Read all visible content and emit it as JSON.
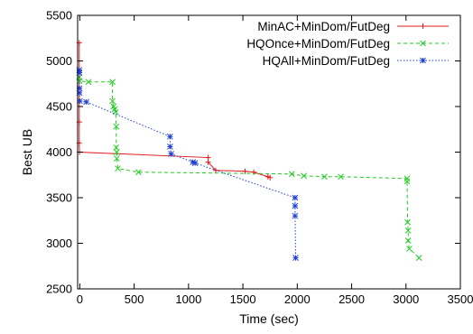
{
  "chart_data": {
    "type": "line",
    "title": "",
    "xlabel": "Time (sec)",
    "ylabel": "Best UB",
    "xlim": [
      -20,
      3500
    ],
    "ylim": [
      2500,
      5500
    ],
    "xticks": [
      0,
      500,
      1000,
      1500,
      2000,
      2500,
      3000,
      3500
    ],
    "yticks": [
      2500,
      3000,
      3500,
      4000,
      4500,
      5000,
      5500
    ],
    "grid": false,
    "legend_position": "top-right",
    "series": [
      {
        "name": "MinAC+MinDom/FutDeg",
        "color": "#e41a1c",
        "line_style": "solid",
        "marker": "plus",
        "points": [
          [
            -5,
            5200
          ],
          [
            -5,
            4700
          ],
          [
            -5,
            4330
          ],
          [
            -5,
            4100
          ],
          [
            -3,
            4000
          ],
          [
            1180,
            3940
          ],
          [
            1180,
            3890
          ],
          [
            1250,
            3800
          ],
          [
            1520,
            3790
          ],
          [
            1600,
            3780
          ],
          [
            1730,
            3730
          ],
          [
            1750,
            3720
          ]
        ]
      },
      {
        "name": "HQOnce+MinDom/FutDeg",
        "color": "#22cc22",
        "line_style": "dashed",
        "marker": "cross",
        "points": [
          [
            -5,
            4820
          ],
          [
            -3,
            4780
          ],
          [
            80,
            4770
          ],
          [
            300,
            4770
          ],
          [
            300,
            4560
          ],
          [
            310,
            4500
          ],
          [
            320,
            4470
          ],
          [
            330,
            4440
          ],
          [
            335,
            4280
          ],
          [
            335,
            4050
          ],
          [
            340,
            4000
          ],
          [
            340,
            3930
          ],
          [
            350,
            3820
          ],
          [
            540,
            3780
          ],
          [
            1950,
            3760
          ],
          [
            2060,
            3740
          ],
          [
            2250,
            3730
          ],
          [
            2400,
            3730
          ],
          [
            3010,
            3710
          ],
          [
            3010,
            3680
          ],
          [
            3015,
            3230
          ],
          [
            3020,
            3140
          ],
          [
            3020,
            3030
          ],
          [
            3030,
            2940
          ],
          [
            3120,
            2840
          ]
        ]
      },
      {
        "name": "HQAll+MinDom/FutDeg",
        "color": "#1f3fd9",
        "line_style": "dotted",
        "marker": "star",
        "points": [
          [
            -5,
            4900
          ],
          [
            -3,
            4870
          ],
          [
            -3,
            4700
          ],
          [
            -3,
            4650
          ],
          [
            0,
            4560
          ],
          [
            60,
            4550
          ],
          [
            830,
            4170
          ],
          [
            830,
            4060
          ],
          [
            840,
            3980
          ],
          [
            1040,
            3890
          ],
          [
            1060,
            3880
          ],
          [
            1980,
            3500
          ],
          [
            1980,
            3410
          ],
          [
            1980,
            3300
          ],
          [
            1985,
            2840
          ]
        ]
      }
    ]
  }
}
